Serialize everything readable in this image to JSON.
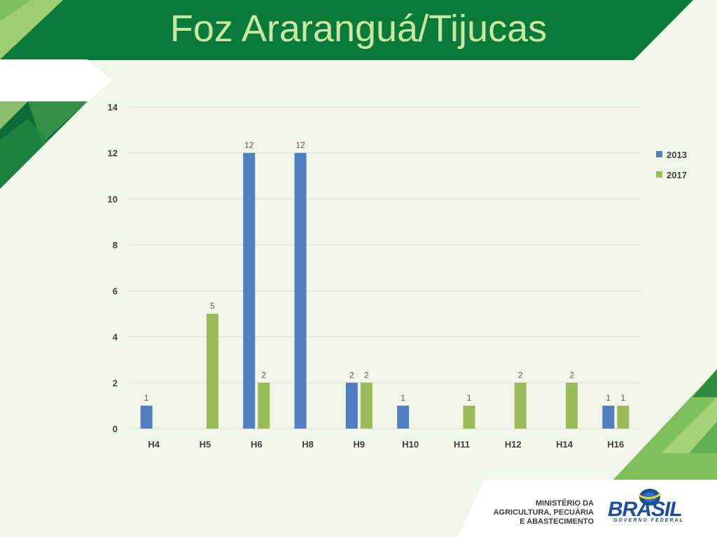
{
  "slide": {
    "title": "Foz Araranguá/Tijucas"
  },
  "logo": {
    "ministry_line1": "MINISTÉRIO DA",
    "ministry_line2": "AGRICULTURA, PECUÁRIA",
    "ministry_line3": "E ABASTECIMENTO",
    "brasil": "BRASIL",
    "governo": "GOVERNO FEDERAL"
  },
  "colors": {
    "title_band": "#0a7a3a",
    "title_text": "#c9e7a4",
    "series_2013": "#4f7fc1",
    "series_2017": "#9bbb59",
    "gridline": "#dcdcdc",
    "label_text": "#595959"
  },
  "chart_data": {
    "type": "bar",
    "title": "",
    "xlabel": "",
    "ylabel": "",
    "categories": [
      "H4",
      "H5",
      "H6",
      "H8",
      "H9",
      "H10",
      "H11",
      "H12",
      "H14",
      "H16"
    ],
    "series": [
      {
        "name": "2013",
        "values": [
          1,
          null,
          12,
          12,
          2,
          1,
          null,
          null,
          null,
          1
        ]
      },
      {
        "name": "2017",
        "values": [
          null,
          5,
          2,
          null,
          2,
          null,
          1,
          2,
          2,
          1
        ]
      }
    ],
    "ylim": [
      0,
      14
    ],
    "yticks": [
      0,
      2,
      4,
      6,
      8,
      10,
      12,
      14
    ],
    "grid": true,
    "legend_position": "right",
    "data_labels": true
  }
}
